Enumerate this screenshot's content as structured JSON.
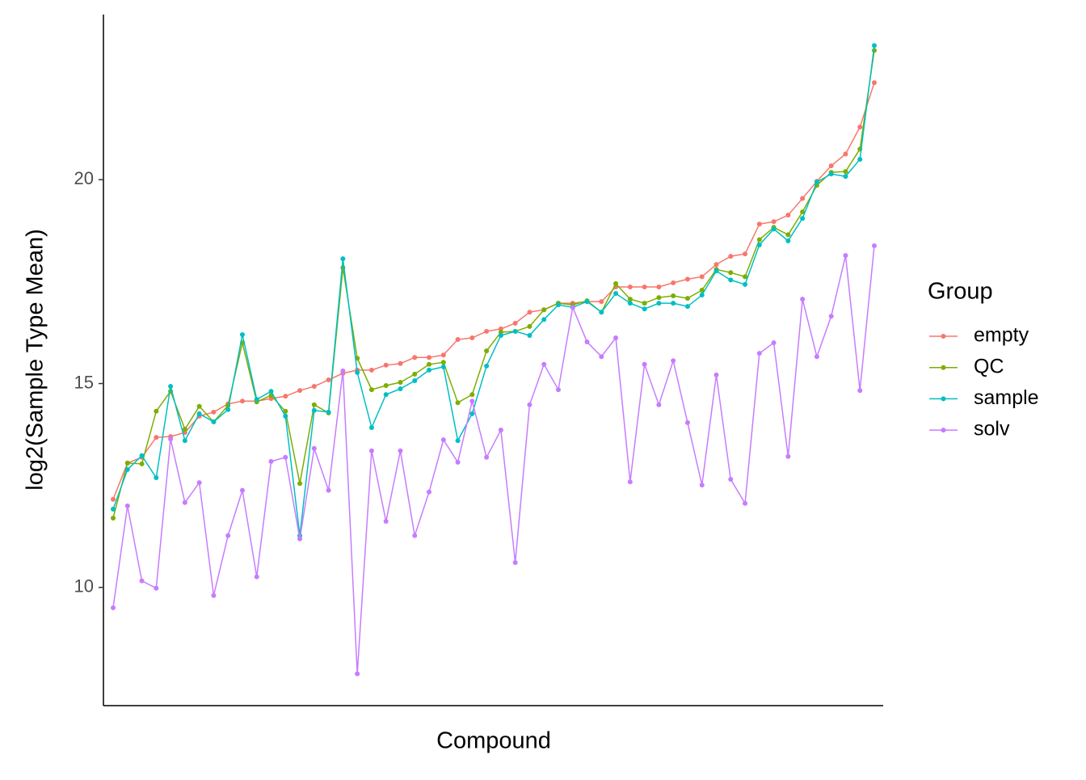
{
  "chart_data": {
    "type": "line",
    "y_label": "log2(Sample Type Mean)",
    "x_label": "Compound",
    "legend_title": "Group",
    "legend_position": "right",
    "grid": false,
    "categories": [
      null,
      null,
      null,
      null,
      null,
      null,
      null,
      null,
      null,
      null,
      null,
      null,
      null,
      null,
      null,
      null,
      null,
      null,
      null,
      null,
      null,
      null,
      null,
      null,
      null,
      null,
      null,
      null,
      null,
      null,
      null,
      null,
      null,
      null,
      null,
      null,
      null,
      null,
      null,
      null,
      null,
      null,
      null,
      null,
      null,
      null,
      null,
      null,
      null,
      null,
      null,
      null,
      null,
      null
    ],
    "ylim": [
      7.1,
      24.05
    ],
    "yticks": [
      10,
      15,
      20
    ],
    "series": [
      {
        "name": "empty",
        "color": "#F8766D",
        "values": [
          12.16,
          13.05,
          13.19,
          13.68,
          13.7,
          13.8,
          14.2,
          14.3,
          14.5,
          14.57,
          14.57,
          14.63,
          14.69,
          14.83,
          14.93,
          15.09,
          15.25,
          15.33,
          15.33,
          15.45,
          15.49,
          15.64,
          15.64,
          15.7,
          16.08,
          16.12,
          16.28,
          16.34,
          16.48,
          16.75,
          16.81,
          16.97,
          16.97,
          17.01,
          17.01,
          17.37,
          17.37,
          17.37,
          17.37,
          17.47,
          17.56,
          17.62,
          17.92,
          18.12,
          18.18,
          18.91,
          18.97,
          19.13,
          19.54,
          19.96,
          20.34,
          20.63,
          21.29,
          22.38
        ]
      },
      {
        "name": "QC",
        "color": "#7CAE00",
        "values": [
          11.7,
          13.05,
          13.03,
          14.32,
          14.81,
          13.88,
          14.44,
          14.06,
          14.46,
          16.0,
          14.55,
          14.71,
          14.32,
          12.55,
          14.48,
          14.28,
          17.84,
          15.62,
          14.85,
          14.95,
          15.03,
          15.23,
          15.47,
          15.52,
          14.53,
          14.73,
          15.8,
          16.26,
          16.28,
          16.4,
          16.81,
          16.97,
          16.93,
          17.03,
          16.75,
          17.45,
          17.07,
          16.97,
          17.11,
          17.15,
          17.09,
          17.29,
          17.8,
          17.72,
          17.62,
          18.53,
          18.83,
          18.65,
          19.21,
          19.86,
          20.18,
          20.2,
          20.75,
          23.17
        ]
      },
      {
        "name": "sample",
        "color": "#00BFC4",
        "values": [
          11.92,
          12.89,
          13.23,
          12.69,
          14.93,
          13.6,
          14.26,
          14.06,
          14.36,
          16.2,
          14.61,
          14.81,
          14.2,
          11.27,
          14.34,
          14.3,
          18.06,
          15.27,
          13.92,
          14.73,
          14.87,
          15.07,
          15.33,
          15.41,
          13.6,
          14.26,
          15.43,
          16.18,
          16.28,
          16.18,
          16.57,
          16.93,
          16.87,
          17.01,
          16.75,
          17.21,
          16.97,
          16.83,
          16.97,
          16.97,
          16.89,
          17.17,
          17.76,
          17.54,
          17.43,
          18.4,
          18.79,
          18.5,
          19.05,
          19.94,
          20.14,
          20.08,
          20.5,
          23.29
        ]
      },
      {
        "name": "solv",
        "color": "#C77CFF",
        "values": [
          9.5,
          12.0,
          10.16,
          9.98,
          13.64,
          12.08,
          12.57,
          9.8,
          11.27,
          12.38,
          10.26,
          13.09,
          13.19,
          11.19,
          13.41,
          12.38,
          15.31,
          7.88,
          13.35,
          11.62,
          13.35,
          11.27,
          12.34,
          13.62,
          13.07,
          14.57,
          13.19,
          13.86,
          10.61,
          14.48,
          15.47,
          14.85,
          16.87,
          16.02,
          15.66,
          16.12,
          12.59,
          15.47,
          14.48,
          15.56,
          14.04,
          12.51,
          15.21,
          12.65,
          12.06,
          15.74,
          16.0,
          13.21,
          17.07,
          15.66,
          16.65,
          18.14,
          14.83,
          18.38
        ]
      }
    ]
  }
}
